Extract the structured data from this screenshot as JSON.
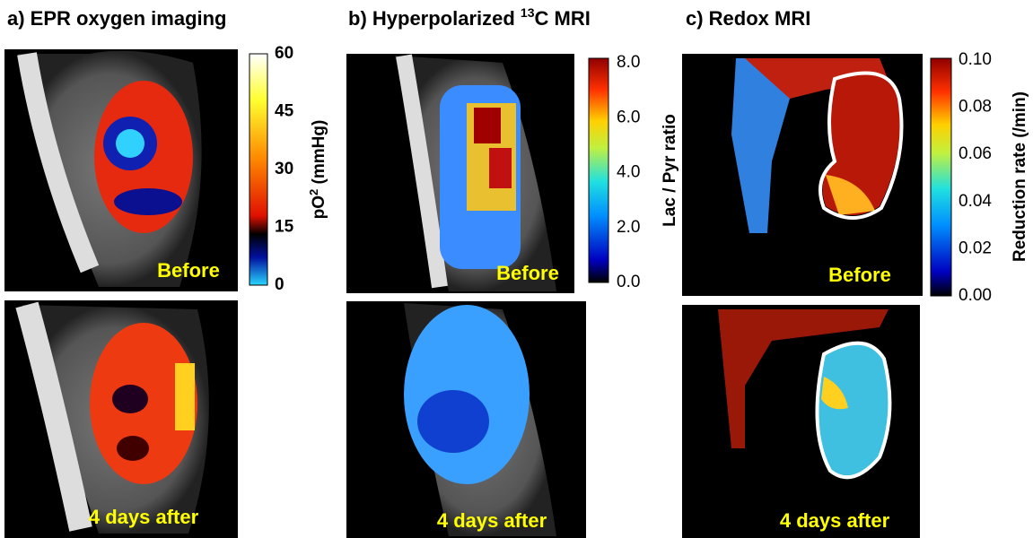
{
  "panels": [
    {
      "title": "a) EPR oxygen imaging",
      "colorbar": {
        "label": {
          "prefix": "pO",
          "superscript": "2",
          "suffix": " (mmHg)"
        },
        "ticks": [
          "60",
          "45",
          "30",
          "15",
          "0"
        ]
      },
      "captions": [
        "Before",
        "4 days after"
      ]
    },
    {
      "title": {
        "prefix": "b) Hyperpolarized ",
        "superscript": "13",
        "suffix": "C MRI"
      },
      "colorbar": {
        "label": "Lac / Pyr ratio",
        "ticks": [
          "8.0",
          "6.0",
          "4.0",
          "2.0",
          "0.0"
        ]
      },
      "captions": [
        "Before",
        "4 days after"
      ]
    },
    {
      "title": "c) Redox MRI",
      "colorbar": {
        "label": "Reduction rate (/min)",
        "ticks": [
          "0.10",
          "0.08",
          "0.06",
          "0.04",
          "0.02",
          "0.00"
        ]
      },
      "captions": [
        "Before",
        "4 days after"
      ]
    }
  ]
}
